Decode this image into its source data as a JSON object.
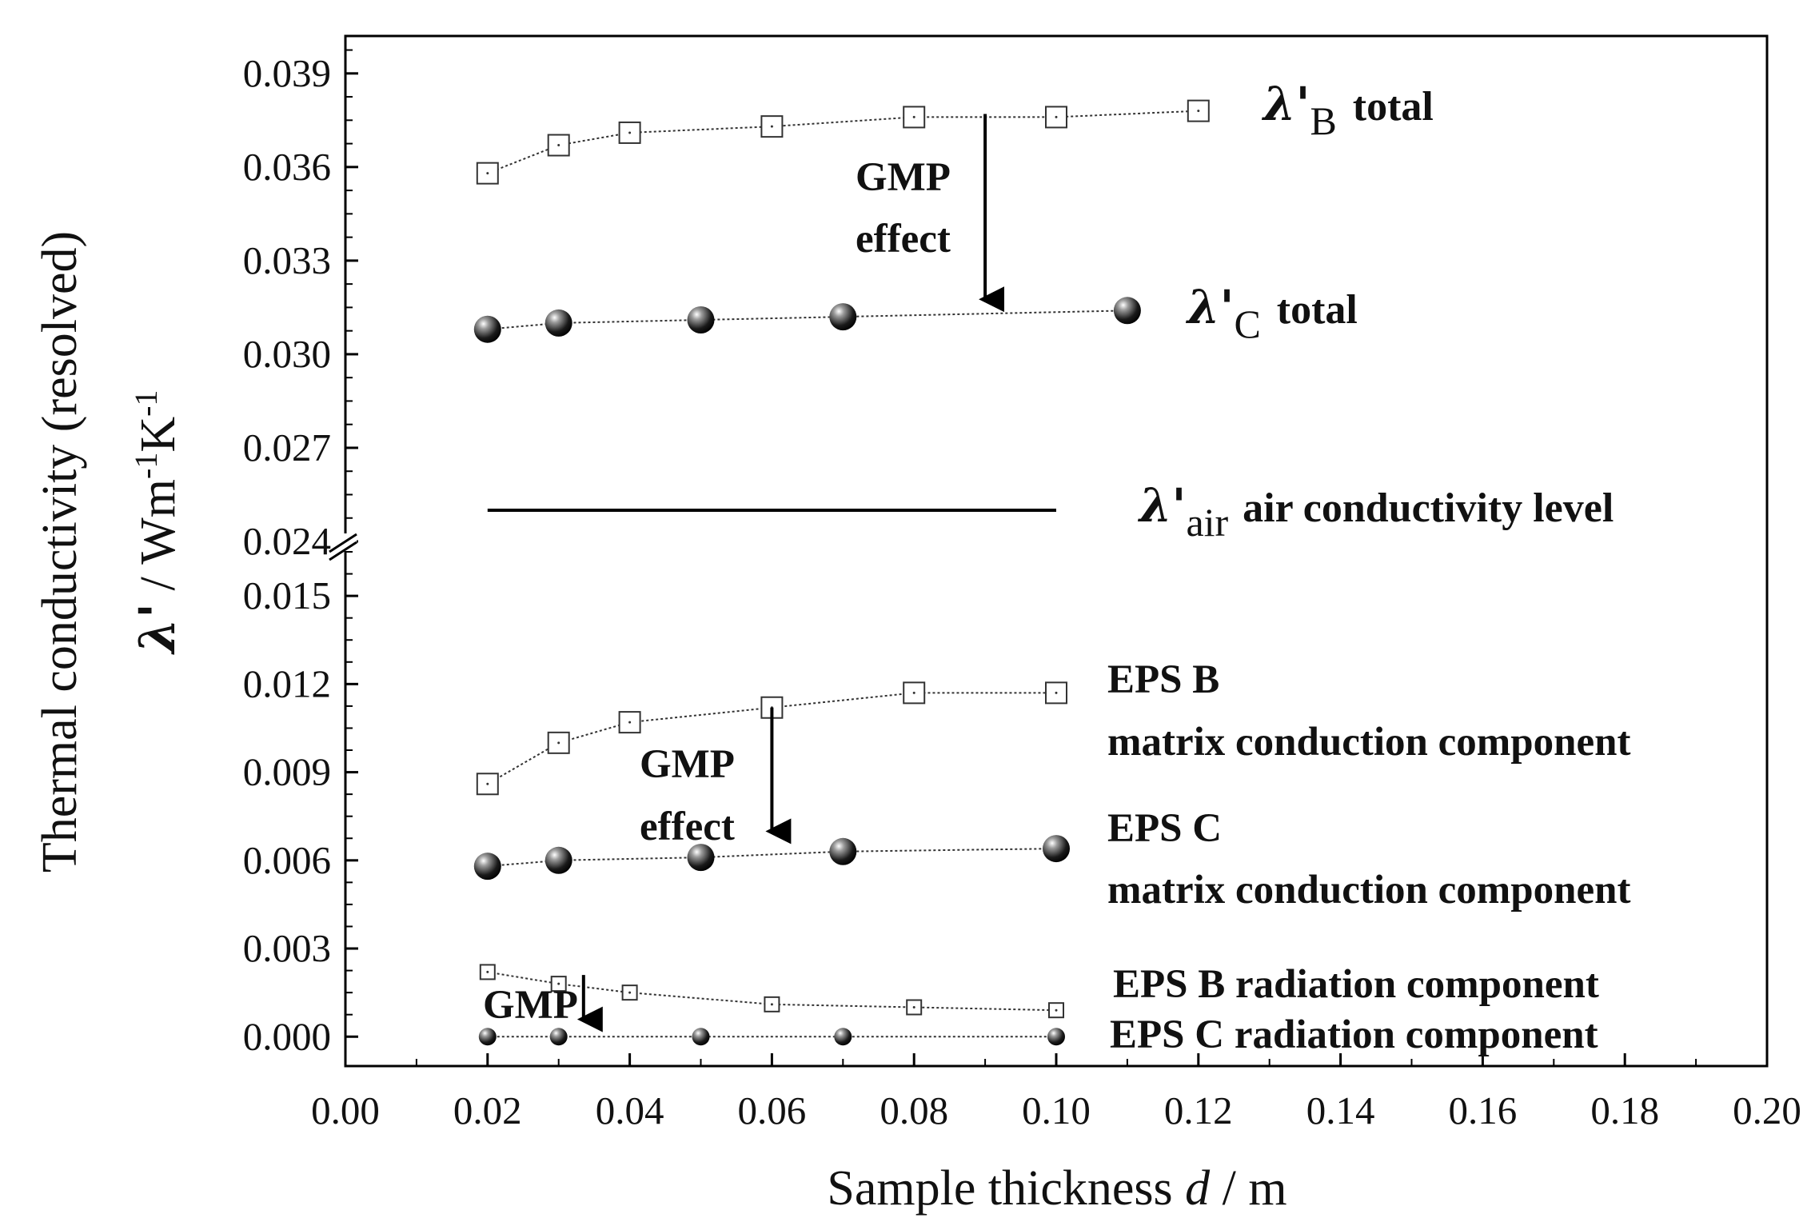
{
  "chart_data": {
    "type": "scatter",
    "xlabel_main": "Sample thickness ",
    "xlabel_var": "d",
    "xlabel_unit": " / m",
    "ylabel_line1": "Thermal conductivity (resolved)",
    "ylabel_symbol": "λ'",
    "ylabel_unit_a": " / Wm",
    "ylabel_unit_exp1": "-1",
    "ylabel_unit_b": "K",
    "ylabel_unit_exp2": "-1",
    "xlim": [
      0.0,
      0.2
    ],
    "x_ticks": [
      0.0,
      0.02,
      0.04,
      0.06,
      0.08,
      0.1,
      0.12,
      0.14,
      0.16,
      0.18,
      0.2
    ],
    "x_tick_labels": [
      "0.00",
      "0.02",
      "0.04",
      "0.06",
      "0.08",
      "0.10",
      "0.12",
      "0.14",
      "0.16",
      "0.18",
      "0.20"
    ],
    "y_break": true,
    "upper_segment": {
      "ylim": [
        0.024,
        0.0402
      ],
      "ticks": [
        0.024,
        0.027,
        0.03,
        0.033,
        0.036,
        0.039
      ],
      "tick_labels": [
        "0.024",
        "0.027",
        "0.030",
        "0.033",
        "0.036",
        "0.039"
      ]
    },
    "lower_segment": {
      "ylim": [
        -0.001,
        0.0165
      ],
      "ticks": [
        0.0,
        0.003,
        0.006,
        0.009,
        0.012,
        0.015
      ],
      "tick_labels": [
        "0.000",
        "0.003",
        "0.006",
        "0.009",
        "0.012",
        "0.015"
      ]
    },
    "series": [
      {
        "name": "λ'B total",
        "segment": "upper",
        "marker": "open-square",
        "x": [
          0.02,
          0.03,
          0.04,
          0.06,
          0.08,
          0.1,
          0.12
        ],
        "y": [
          0.0358,
          0.0367,
          0.0371,
          0.0373,
          0.0376,
          0.0376,
          0.0378
        ]
      },
      {
        "name": "λ'C total",
        "segment": "upper",
        "marker": "ball",
        "x": [
          0.02,
          0.03,
          0.05,
          0.07,
          0.11
        ],
        "y": [
          0.0308,
          0.031,
          0.0311,
          0.0312,
          0.0314
        ]
      },
      {
        "name": "λ'air air conductivity level",
        "segment": "upper",
        "marker": "line",
        "x": [
          0.02,
          0.1
        ],
        "y": [
          0.025,
          0.025
        ]
      },
      {
        "name": "EPS B matrix conduction component",
        "segment": "lower",
        "marker": "open-square",
        "x": [
          0.02,
          0.03,
          0.04,
          0.06,
          0.08,
          0.1
        ],
        "y": [
          0.0086,
          0.01,
          0.0107,
          0.0112,
          0.0117,
          0.0117
        ]
      },
      {
        "name": "EPS C matrix conduction component",
        "segment": "lower",
        "marker": "ball",
        "x": [
          0.02,
          0.03,
          0.05,
          0.07,
          0.1
        ],
        "y": [
          0.0058,
          0.006,
          0.0061,
          0.0063,
          0.0064
        ]
      },
      {
        "name": "EPS B radiation component",
        "segment": "lower",
        "marker": "open-square-small",
        "x": [
          0.02,
          0.03,
          0.04,
          0.06,
          0.08,
          0.1
        ],
        "y": [
          0.0022,
          0.0018,
          0.0015,
          0.0011,
          0.001,
          0.0009
        ]
      },
      {
        "name": "EPS C radiation component",
        "segment": "lower",
        "marker": "ball-small",
        "x": [
          0.02,
          0.03,
          0.05,
          0.07,
          0.1
        ],
        "y": [
          0.0,
          0.0,
          0.0,
          0.0,
          0.0
        ]
      }
    ],
    "annotations": {
      "lambda": "λ'",
      "sub_b": "B",
      "sub_c": "C",
      "sub_air": "air",
      "total": "total",
      "air_level": "air conductivity level",
      "gmp": "GMP",
      "effect": "effect",
      "eps_b": "EPS B",
      "eps_c": "EPS C",
      "matrix": "matrix conduction component",
      "eps_b_rad": "EPS B radiation component",
      "eps_c_rad": "EPS C radiation component",
      "gmp_small": "GMP"
    },
    "arrows": [
      {
        "segment": "upper",
        "x": 0.09,
        "y_from": 0.0377,
        "y_to": 0.0313
      },
      {
        "segment": "lower",
        "x": 0.06,
        "y_from": 0.0112,
        "y_to": 0.0065
      },
      {
        "segment": "lower",
        "x": 0.0335,
        "y_from": 0.0021,
        "y_to": 0.0001
      }
    ]
  }
}
